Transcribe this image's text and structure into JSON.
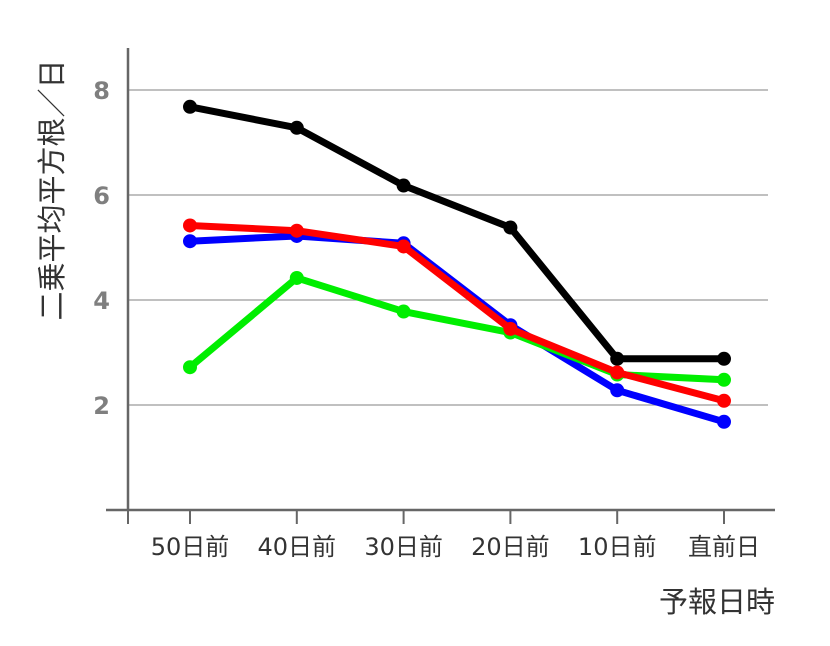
{
  "chart_data": {
    "type": "line",
    "xlabel": "予報日時",
    "ylabel": "二乗平均平方根／日",
    "categories": [
      "50日前",
      "40日前",
      "30日前",
      "20日前",
      "10日前",
      "直前日"
    ],
    "ylim": [
      0,
      8.8
    ],
    "yticks": [
      2,
      4,
      6,
      8
    ],
    "grid": true,
    "legend": "none",
    "series": [
      {
        "color": "#000000",
        "values": [
          7.68,
          7.28,
          6.18,
          5.38,
          2.88,
          2.88
        ]
      },
      {
        "color": "#0000ff",
        "values": [
          5.12,
          5.22,
          5.08,
          3.52,
          2.28,
          1.68
        ]
      },
      {
        "color": "#00ee00",
        "values": [
          2.72,
          4.42,
          3.78,
          3.38,
          2.58,
          2.48
        ]
      },
      {
        "color": "#ff0000",
        "values": [
          5.42,
          5.32,
          5.02,
          3.45,
          2.62,
          2.08
        ]
      }
    ]
  }
}
